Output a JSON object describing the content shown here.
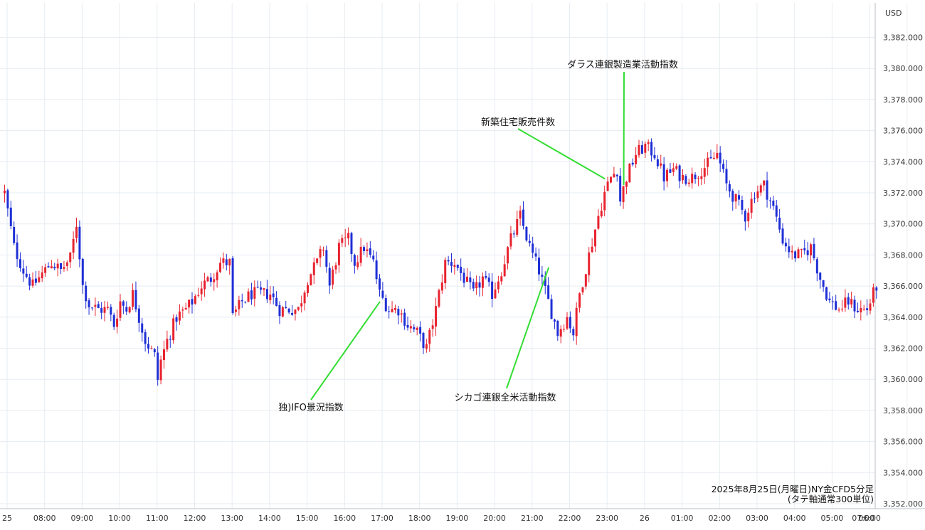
{
  "chart_data": {
    "type": "candlestick",
    "unit": "USD",
    "caption_line1": "2025年8月25日(月曜日)NY金CFD5分足",
    "caption_line2": "(タテ軸通常300単位)",
    "ylim": [
      3351,
      3383.5
    ],
    "y_ticks": [
      "3,352.000",
      "3,354.000",
      "3,356.000",
      "3,358.000",
      "3,360.000",
      "3,362.000",
      "3,364.000",
      "3,366.000",
      "3,368.000",
      "3,370.000",
      "3,372.000",
      "3,374.000",
      "3,376.000",
      "3,378.000",
      "3,380.000",
      "3,382.000"
    ],
    "y_tick_values": [
      3352,
      3354,
      3356,
      3358,
      3360,
      3362,
      3364,
      3366,
      3368,
      3370,
      3372,
      3374,
      3376,
      3378,
      3380,
      3382
    ],
    "x_ticks": [
      "25",
      "08:00",
      "09:00",
      "10:00",
      "11:00",
      "12:00",
      "13:00",
      "14:00",
      "15:00",
      "16:00",
      "17:00",
      "18:00",
      "19:00",
      "20:00",
      "21:00",
      "22:00",
      "23:00",
      "26",
      "01:00",
      "02:00",
      "03:00",
      "04:00",
      "05:00",
      "06:00",
      "07:00"
    ],
    "grid": true,
    "colors": {
      "up": "#e8232f",
      "down": "#1f2fd6",
      "annotation_line": "#33dd33",
      "grid": "#e6ecf2"
    },
    "series": [
      {
        "t": "07:00",
        "c": 3372
      },
      {
        "t": "07:15",
        "c": 3368.5
      },
      {
        "t": "07:30",
        "c": 3367
      },
      {
        "t": "07:45",
        "c": 3366
      },
      {
        "t": "08:00",
        "c": 3366.8
      },
      {
        "t": "08:15",
        "c": 3367.5
      },
      {
        "t": "08:30",
        "c": 3367
      },
      {
        "t": "08:45",
        "c": 3367.8
      },
      {
        "t": "08:55",
        "c": 3370
      },
      {
        "t": "09:05",
        "c": 3366
      },
      {
        "t": "09:15",
        "c": 3364.8
      },
      {
        "t": "09:30",
        "c": 3364.5
      },
      {
        "t": "09:45",
        "c": 3364.5
      },
      {
        "t": "09:55",
        "c": 3363.5
      },
      {
        "t": "10:05",
        "c": 3365
      },
      {
        "t": "10:15",
        "c": 3364.5
      },
      {
        "t": "10:25",
        "c": 3365.5
      },
      {
        "t": "10:35",
        "c": 3364
      },
      {
        "t": "10:45",
        "c": 3362.5
      },
      {
        "t": "11:00",
        "c": 3361.5
      },
      {
        "t": "11:05",
        "c": 3360
      },
      {
        "t": "11:10",
        "c": 3361.2
      },
      {
        "t": "11:20",
        "c": 3362.5
      },
      {
        "t": "11:35",
        "c": 3364
      },
      {
        "t": "11:50",
        "c": 3364.5
      },
      {
        "t": "12:00",
        "c": 3365
      },
      {
        "t": "12:15",
        "c": 3366
      },
      {
        "t": "12:30",
        "c": 3366.5
      },
      {
        "t": "12:45",
        "c": 3367.5
      },
      {
        "t": "13:00",
        "c": 3367.5
      },
      {
        "t": "13:05",
        "c": 3364
      },
      {
        "t": "13:20",
        "c": 3365
      },
      {
        "t": "13:35",
        "c": 3365.5
      },
      {
        "t": "13:50",
        "c": 3365.5
      },
      {
        "t": "14:05",
        "c": 3365.5
      },
      {
        "t": "14:20",
        "c": 3364.5
      },
      {
        "t": "14:35",
        "c": 3364.5
      },
      {
        "t": "14:50",
        "c": 3364.5
      },
      {
        "t": "15:05",
        "c": 3366.5
      },
      {
        "t": "15:20",
        "c": 3367.5
      },
      {
        "t": "15:30",
        "c": 3368.5
      },
      {
        "t": "15:40",
        "c": 3366
      },
      {
        "t": "15:55",
        "c": 3368.5
      },
      {
        "t": "16:10",
        "c": 3369
      },
      {
        "t": "16:20",
        "c": 3367.5
      },
      {
        "t": "16:35",
        "c": 3368.5
      },
      {
        "t": "16:50",
        "c": 3367.5
      },
      {
        "t": "17:00",
        "c": 3365.5
      },
      {
        "t": "17:15",
        "c": 3364.5
      },
      {
        "t": "17:30",
        "c": 3364.5
      },
      {
        "t": "17:45",
        "c": 3363.5
      },
      {
        "t": "18:00",
        "c": 3363
      },
      {
        "t": "18:15",
        "c": 3362
      },
      {
        "t": "18:30",
        "c": 3364.5
      },
      {
        "t": "18:45",
        "c": 3367.5
      },
      {
        "t": "19:00",
        "c": 3367.5
      },
      {
        "t": "19:15",
        "c": 3366.5
      },
      {
        "t": "19:30",
        "c": 3365.5
      },
      {
        "t": "19:45",
        "c": 3366.5
      },
      {
        "t": "20:00",
        "c": 3365.5
      },
      {
        "t": "20:15",
        "c": 3367
      },
      {
        "t": "20:30",
        "c": 3369
      },
      {
        "t": "20:45",
        "c": 3370.5
      },
      {
        "t": "21:00",
        "c": 3368.5
      },
      {
        "t": "21:15",
        "c": 3367
      },
      {
        "t": "21:30",
        "c": 3365
      },
      {
        "t": "21:45",
        "c": 3363
      },
      {
        "t": "22:00",
        "c": 3364
      },
      {
        "t": "22:10",
        "c": 3363
      },
      {
        "t": "22:20",
        "c": 3365.5
      },
      {
        "t": "22:35",
        "c": 3368
      },
      {
        "t": "22:50",
        "c": 3370.5
      },
      {
        "t": "23:00",
        "c": 3372
      },
      {
        "t": "23:10",
        "c": 3373
      },
      {
        "t": "23:20",
        "c": 3373.5
      },
      {
        "t": "23:25",
        "c": 3371.5
      },
      {
        "t": "23:35",
        "c": 3373
      },
      {
        "t": "23:50",
        "c": 3374.5
      },
      {
        "t": "00:05",
        "c": 3375
      },
      {
        "t": "00:20",
        "c": 3374.5
      },
      {
        "t": "00:35",
        "c": 3373
      },
      {
        "t": "00:50",
        "c": 3373.5
      },
      {
        "t": "01:05",
        "c": 3373
      },
      {
        "t": "01:20",
        "c": 3373
      },
      {
        "t": "01:35",
        "c": 3373.5
      },
      {
        "t": "01:50",
        "c": 3374
      },
      {
        "t": "02:00",
        "c": 3374.5
      },
      {
        "t": "02:15",
        "c": 3372.5
      },
      {
        "t": "02:30",
        "c": 3371.5
      },
      {
        "t": "02:45",
        "c": 3370.5
      },
      {
        "t": "03:00",
        "c": 3372
      },
      {
        "t": "03:15",
        "c": 3372.5
      },
      {
        "t": "03:30",
        "c": 3371
      },
      {
        "t": "03:45",
        "c": 3369
      },
      {
        "t": "04:00",
        "c": 3368
      },
      {
        "t": "04:15",
        "c": 3368
      },
      {
        "t": "04:30",
        "c": 3368.5
      },
      {
        "t": "04:45",
        "c": 3366.5
      },
      {
        "t": "05:00",
        "c": 3365
      },
      {
        "t": "05:15",
        "c": 3364.5
      },
      {
        "t": "05:30",
        "c": 3365
      },
      {
        "t": "05:45",
        "c": 3364.5
      },
      {
        "t": "06:00",
        "c": 3364.5
      },
      {
        "t": "06:15",
        "c": 3366
      }
    ],
    "annotations": [
      {
        "label": "独)IFO景況指数",
        "time": "17:00",
        "price": 3365.0
      },
      {
        "label": "シカゴ連銀全米活動指数",
        "time": "21:30",
        "price": 3367.2
      },
      {
        "label": "新築住宅販売件数",
        "time": "23:00",
        "price": 3372.9
      },
      {
        "label": "ダラス連銀製造業活動指数",
        "time": "23:30",
        "price": 3372.5
      }
    ]
  }
}
